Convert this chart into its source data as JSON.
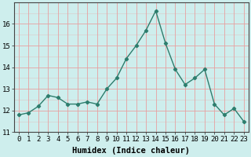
{
  "x": [
    0,
    1,
    2,
    3,
    4,
    5,
    6,
    7,
    8,
    9,
    10,
    11,
    12,
    13,
    14,
    15,
    16,
    17,
    18,
    19,
    20,
    21,
    22,
    23
  ],
  "y": [
    11.8,
    11.9,
    12.2,
    12.7,
    12.6,
    12.3,
    12.3,
    12.4,
    12.3,
    13.0,
    13.5,
    14.4,
    15.0,
    15.7,
    16.6,
    15.1,
    13.9,
    13.2,
    13.5,
    13.9,
    12.3,
    11.8,
    12.1,
    11.5
  ],
  "line_color": "#2d7d6d",
  "marker": "D",
  "marker_size": 2.2,
  "bg_color": "#ceeeed",
  "grid_major_color": "#e8a0a0",
  "grid_minor_color": "#e8d0d0",
  "xlabel": "Humidex (Indice chaleur)",
  "xlim": [
    -0.5,
    23.5
  ],
  "ylim": [
    11,
    17
  ],
  "yticks": [
    11,
    12,
    13,
    14,
    15,
    16
  ],
  "xtick_labels": [
    "0",
    "1",
    "2",
    "3",
    "4",
    "5",
    "6",
    "7",
    "8",
    "9",
    "10",
    "11",
    "12",
    "13",
    "14",
    "15",
    "16",
    "17",
    "18",
    "19",
    "20",
    "21",
    "22",
    "23"
  ],
  "tick_fontsize": 6.5,
  "label_fontsize": 7.5,
  "linewidth": 1.0
}
